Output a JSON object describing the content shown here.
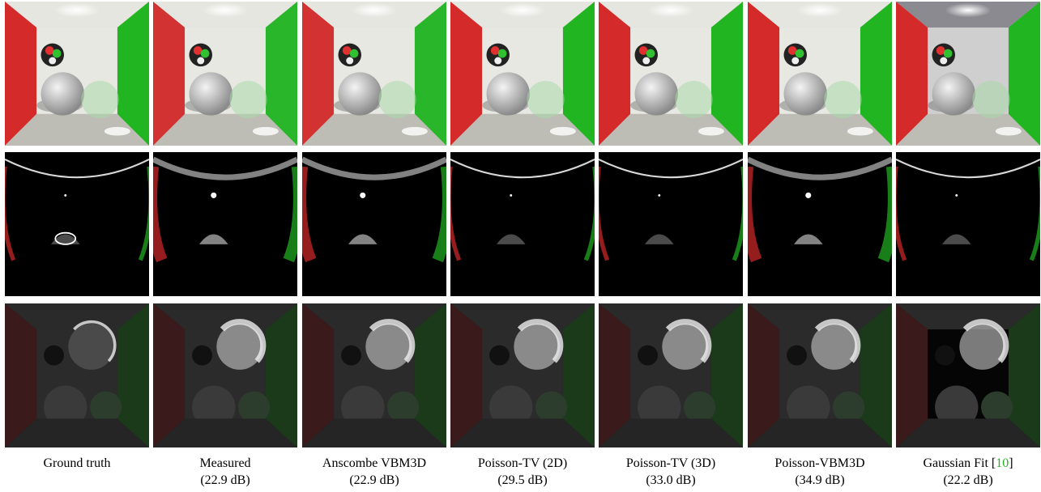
{
  "columns": [
    {
      "method": "Ground truth",
      "psnr": "",
      "variant": "gt"
    },
    {
      "method": "Measured",
      "psnr": "(22.9 dB)",
      "variant": "measured"
    },
    {
      "method": "Anscombe VBM3D",
      "psnr": "(22.9 dB)",
      "variant": "anscombe"
    },
    {
      "method": "Poisson-TV (2D)",
      "psnr": "(29.5 dB)",
      "variant": "tv2d"
    },
    {
      "method": "Poisson-TV (3D)",
      "psnr": "(33.0 dB)",
      "variant": "tv3d"
    },
    {
      "method": "Poisson-VBM3D",
      "psnr": "(34.9 dB)",
      "variant": "vbm3d"
    },
    {
      "method": "Gaussian Fit [",
      "cite": "10",
      "cite_close": "]",
      "psnr": "(22.2 dB)",
      "variant": "gauss"
    }
  ],
  "rows": [
    "full-scene",
    "transient-frame-early",
    "transient-frame-late"
  ],
  "colors": {
    "red_wall": "#d42a2a",
    "green_wall": "#22b522",
    "back_wall": "#e8e8e2",
    "citation": "#22b522"
  }
}
